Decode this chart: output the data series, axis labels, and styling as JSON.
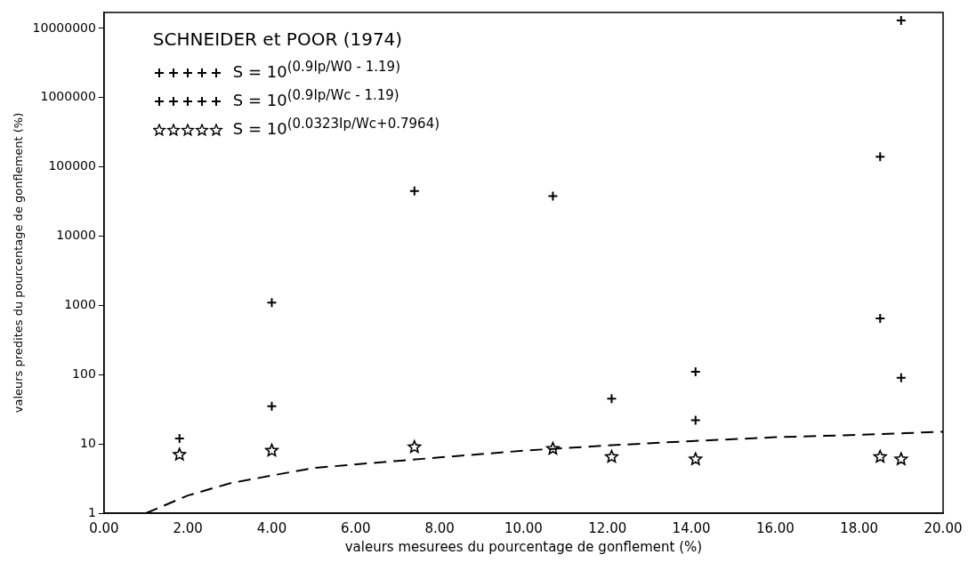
{
  "chart_data": {
    "type": "scatter",
    "xlabel": "valeurs mesurees du pourcentage de gonflement (%)",
    "ylabel": "valeurs predites du pourcentage de gonflement (%)",
    "legend_title": "SCHNEIDER et POOR (1974)",
    "legend": "top left",
    "log": "y",
    "grid": false,
    "xlim": [
      0,
      20
    ],
    "xticks": [
      {
        "value": 0,
        "label": "0.00"
      },
      {
        "value": 2,
        "label": "2.00"
      },
      {
        "value": 4,
        "label": "4.00"
      },
      {
        "value": 6,
        "label": "6.00"
      },
      {
        "value": 8,
        "label": "8.00"
      },
      {
        "value": 10,
        "label": "10.00"
      },
      {
        "value": 12,
        "label": "12.00"
      },
      {
        "value": 14,
        "label": "14.00"
      },
      {
        "value": 16,
        "label": "16.00"
      },
      {
        "value": 18,
        "label": "18.00"
      },
      {
        "value": 20,
        "label": "20.00"
      }
    ],
    "ylim": [
      1,
      17000000
    ],
    "yticks": [
      1,
      10,
      100,
      1000,
      10000,
      100000,
      1000000,
      10000000
    ],
    "x": [
      1.8,
      4.0,
      7.4,
      10.7,
      12.1,
      14.1,
      18.5,
      19.0
    ],
    "series": [
      {
        "name": "S = 10$^{(0.9Ip/W0 - 1.19)}$",
        "color": "#000000",
        "marker": "cross",
        "values": [
          12,
          35,
          45000,
          38000,
          45,
          110,
          140000,
          13000000
        ]
      },
      {
        "name": "S = 10$^{(0.9Ip/Wc - 1.19)}$",
        "color": "#000000",
        "marker": "cross",
        "values": [
          null,
          1100,
          null,
          null,
          null,
          22,
          650,
          90
        ]
      },
      {
        "name": "S = 10$^{(0.0323Ip/Wc+0.7964)}$",
        "color": "#000000",
        "marker": "star",
        "values": [
          7,
          8,
          9,
          8.5,
          6.5,
          6,
          6.5,
          6
        ]
      },
      {
        "type": "line",
        "color": "#000000",
        "marker": "none",
        "line_style": "dashed",
        "x": [
          1.0,
          2.0,
          3.0,
          4.0,
          5.0,
          7.0,
          10.0,
          12.0,
          14.0,
          16.0,
          18.0,
          20.0
        ],
        "values": [
          1,
          1.8,
          2.7,
          3.5,
          4.5,
          5.7,
          8,
          9.5,
          11,
          12.5,
          13.5,
          15
        ]
      }
    ]
  }
}
